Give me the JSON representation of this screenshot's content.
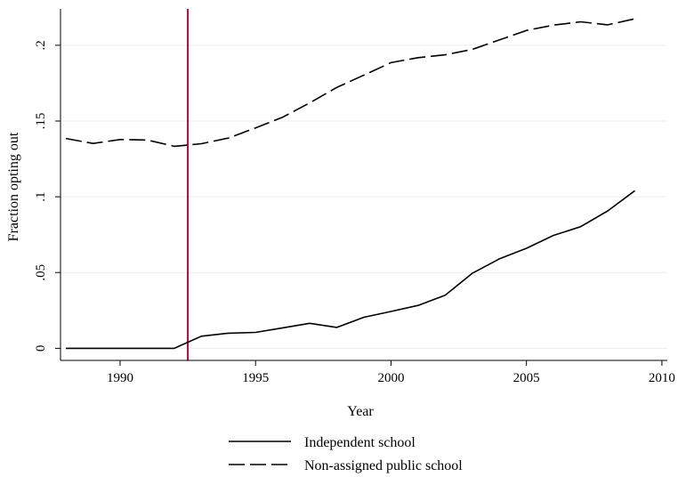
{
  "chart_data": {
    "type": "line",
    "xlabel": "Year",
    "ylabel": "Fraction opting out",
    "xlim": [
      1987.8,
      2010.2
    ],
    "ylim": [
      -0.008,
      0.224
    ],
    "xticks": [
      1990,
      1995,
      2000,
      2005,
      2010
    ],
    "xtick_labels": [
      "1990",
      "1995",
      "2000",
      "2005",
      "2010"
    ],
    "yticks": [
      0,
      0.05,
      0.1,
      0.15,
      0.2
    ],
    "ytick_labels": [
      "0",
      ".05",
      ".1",
      ".15",
      ".2"
    ],
    "grid": true,
    "legend_position": "bottom",
    "reference_line": {
      "x": 1992.5,
      "color": "#a01038"
    },
    "series": [
      {
        "name": "Independent school",
        "dash": "solid",
        "x": [
          1988,
          1989,
          1990,
          1991,
          1992,
          1993,
          1994,
          1995,
          1996,
          1997,
          1998,
          1999,
          2000,
          2001,
          2002,
          2003,
          2004,
          2005,
          2006,
          2007,
          2008,
          2009
        ],
        "y": [
          0,
          0,
          0,
          0,
          0,
          0.008,
          0.01,
          0.0105,
          0.0135,
          0.0165,
          0.0138,
          0.0205,
          0.0243,
          0.0283,
          0.035,
          0.0495,
          0.059,
          0.066,
          0.0745,
          0.0803,
          0.0907,
          0.104
        ]
      },
      {
        "name": "Non-assigned public school",
        "dash": "long-dash",
        "x": [
          1988,
          1989,
          1990,
          1991,
          1992,
          1993,
          1994,
          1995,
          1996,
          1997,
          1998,
          1999,
          2000,
          2001,
          2002,
          2003,
          2004,
          2005,
          2006,
          2007,
          2008,
          2009
        ],
        "y": [
          0.1385,
          0.1352,
          0.1378,
          0.1375,
          0.1333,
          0.135,
          0.1388,
          0.1455,
          0.1525,
          0.162,
          0.1722,
          0.1803,
          0.1885,
          0.1918,
          0.1937,
          0.1973,
          0.2035,
          0.2098,
          0.2133,
          0.2155,
          0.2135,
          0.2175
        ]
      }
    ]
  }
}
